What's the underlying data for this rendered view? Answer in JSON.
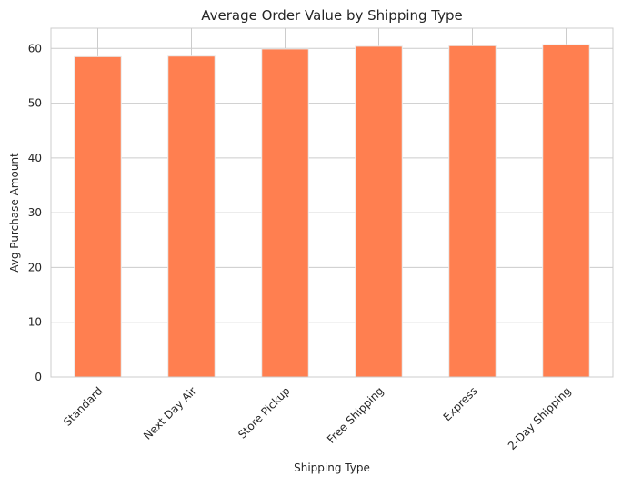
{
  "chart_data": {
    "type": "bar",
    "title": "Average Order Value by Shipping Type",
    "xlabel": "Shipping Type",
    "ylabel": "Avg Purchase Amount",
    "categories": [
      "Standard",
      "Next Day Air",
      "Store Pickup",
      "Free Shipping",
      "Express",
      "2-Day Shipping"
    ],
    "values": [
      58.5,
      58.6,
      59.9,
      60.4,
      60.5,
      60.7
    ],
    "ylim": [
      0,
      63.7
    ],
    "yticks": [
      0,
      10,
      20,
      30,
      40,
      50,
      60
    ],
    "grid": true,
    "legend": "none",
    "colors": {
      "bar": "#ff7f50",
      "bar_edge": "#eaeaea",
      "grid": "#cccccc",
      "axes_edge": "#cccccc",
      "text": "#262626"
    }
  }
}
